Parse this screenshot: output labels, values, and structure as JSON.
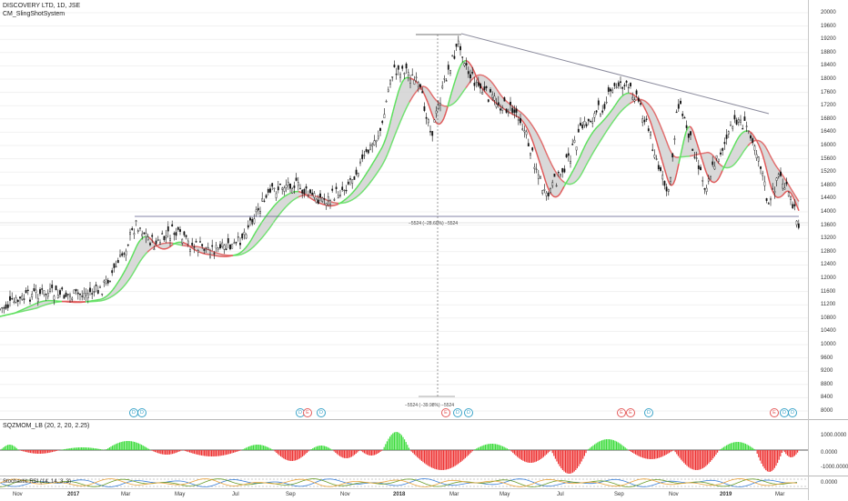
{
  "legend": {
    "title": "DISCOVERY LTD, 1D, JSE",
    "indicator": "CM_SlingShotSystem",
    "osc_label": "SQZMOM_LB (20, 2, 20, 2.25)",
    "rsi_label": "Stochastic RSI (14, 14, 3, 3)"
  },
  "price_axis": [
    "20000",
    "19600",
    "19200",
    "18800",
    "18400",
    "18000",
    "17600",
    "17200",
    "16800",
    "16400",
    "16000",
    "15600",
    "15200",
    "14800",
    "14400",
    "14000",
    "13600",
    "13200",
    "12800",
    "12400",
    "12000",
    "11600",
    "11200",
    "10800",
    "10400",
    "10000",
    "9600",
    "9200",
    "8800",
    "8400",
    "8000"
  ],
  "osc_axis": [
    "1000.0000",
    "0.0000",
    "-1000.0000"
  ],
  "rsi_axis": [
    "0.0000"
  ],
  "time_axis": [
    {
      "label": "Nov",
      "bold": false
    },
    {
      "label": "2017",
      "bold": true
    },
    {
      "label": "Mar",
      "bold": false
    },
    {
      "label": "May",
      "bold": false
    },
    {
      "label": "Jul",
      "bold": false
    },
    {
      "label": "Sep",
      "bold": false
    },
    {
      "label": "Nov",
      "bold": false
    },
    {
      "label": "2018",
      "bold": true
    },
    {
      "label": "Mar",
      "bold": false
    },
    {
      "label": "May",
      "bold": false
    },
    {
      "label": "Jul",
      "bold": false
    },
    {
      "label": "Sep",
      "bold": false
    },
    {
      "label": "Nov",
      "bold": false
    },
    {
      "label": "2019",
      "bold": true
    },
    {
      "label": "Mar",
      "bold": false
    }
  ],
  "measures": {
    "upper": "−5524 (−28.60%) −5524",
    "lower": "−5524 (−39.98%) −5524"
  },
  "events": [
    {
      "letter": "D",
      "kind": "dividend"
    },
    {
      "letter": "D",
      "kind": "dividend"
    },
    {
      "letter": "D",
      "kind": "dividend"
    },
    {
      "letter": "E",
      "kind": "earnings"
    },
    {
      "letter": "D",
      "kind": "dividend"
    },
    {
      "letter": "E",
      "kind": "earnings"
    },
    {
      "letter": "D",
      "kind": "dividend"
    },
    {
      "letter": "D",
      "kind": "dividend"
    },
    {
      "letter": "E",
      "kind": "earnings"
    },
    {
      "letter": "E",
      "kind": "earnings"
    },
    {
      "letter": "D",
      "kind": "dividend"
    },
    {
      "letter": "E",
      "kind": "earnings"
    },
    {
      "letter": "D",
      "kind": "dividend"
    },
    {
      "letter": "D",
      "kind": "dividend"
    }
  ],
  "colors": {
    "fast_ema_up": "#5ee05e",
    "slow_ema_down": "#e05a5a",
    "ribbon_fill": "#d0d0d0",
    "hist_pos": "#3ddc3d",
    "hist_neg": "#ee3333",
    "trendline": "#8a8a9c"
  }
}
